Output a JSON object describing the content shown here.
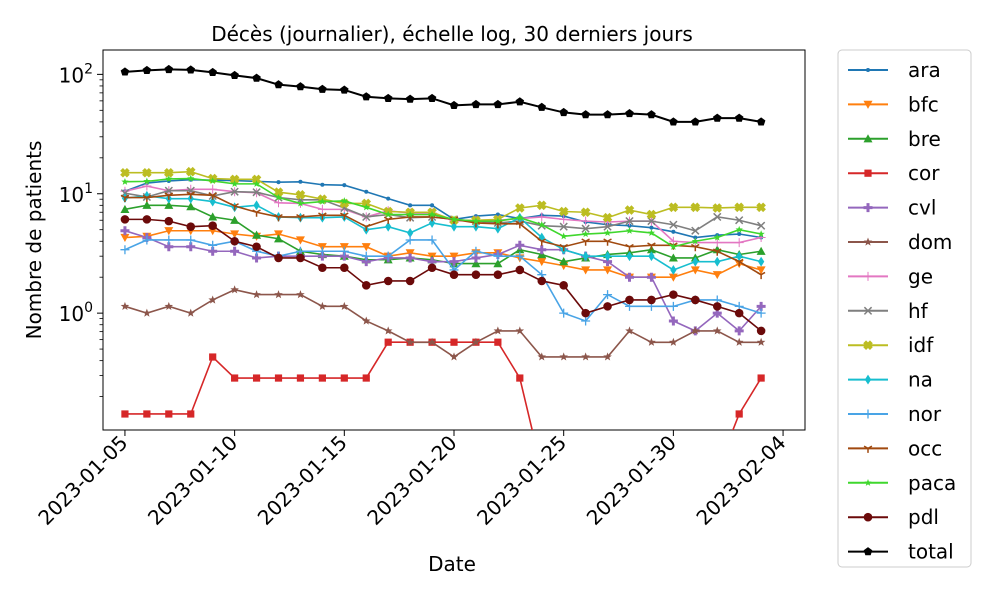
{
  "chart_data": {
    "type": "line",
    "title": "Décès (journalier), échelle log, 30 derniers jours",
    "xlabel": "Date",
    "ylabel": "Nombre de patients",
    "yscale": "log",
    "ylim": [
      0.105,
      160
    ],
    "xlim": [
      "2023-01-04",
      "2023-02-05"
    ],
    "grid": false,
    "legend_placement": "outside-right",
    "x": [
      "2023-01-05",
      "2023-01-06",
      "2023-01-07",
      "2023-01-08",
      "2023-01-09",
      "2023-01-10",
      "2023-01-11",
      "2023-01-12",
      "2023-01-13",
      "2023-01-14",
      "2023-01-15",
      "2023-01-16",
      "2023-01-17",
      "2023-01-18",
      "2023-01-19",
      "2023-01-20",
      "2023-01-21",
      "2023-01-22",
      "2023-01-23",
      "2023-01-24",
      "2023-01-25",
      "2023-01-26",
      "2023-01-27",
      "2023-01-28",
      "2023-01-29",
      "2023-01-30",
      "2023-01-31",
      "2023-02-01",
      "2023-02-02",
      "2023-02-03"
    ],
    "x_ticks": [
      "2023-01-05",
      "2023-01-10",
      "2023-01-15",
      "2023-01-20",
      "2023-01-25",
      "2023-01-30",
      "2023-02-04"
    ],
    "y_ticks": [
      {
        "value": 1,
        "label": "10^0"
      },
      {
        "value": 10,
        "label": "10^1"
      },
      {
        "value": 100,
        "label": "10^2"
      }
    ],
    "series": [
      {
        "name": "ara",
        "color": "#1f77b4",
        "marker": "point",
        "values": [
          10.5,
          12.3,
          12.8,
          13.1,
          13.0,
          12.9,
          12.7,
          12.5,
          12.6,
          11.9,
          11.8,
          10.4,
          9.1,
          8.0,
          8.0,
          6.1,
          6.5,
          6.7,
          6.2,
          6.6,
          6.5,
          5.8,
          5.5,
          5.4,
          5.2,
          4.8,
          4.3,
          4.5,
          4.6,
          4.3
        ]
      },
      {
        "name": "bfc",
        "color": "#ff7f0e",
        "marker": "triangle-down",
        "values": [
          4.3,
          4.4,
          4.9,
          4.9,
          4.9,
          4.6,
          4.4,
          4.6,
          4.1,
          3.6,
          3.6,
          3.6,
          3.0,
          3.2,
          3.0,
          3.0,
          3.2,
          3.2,
          2.9,
          2.7,
          2.5,
          2.3,
          2.3,
          2.0,
          2.0,
          2.0,
          2.3,
          2.1,
          2.6,
          2.3
        ]
      },
      {
        "name": "bre",
        "color": "#2ca02c",
        "marker": "triangle-up",
        "values": [
          7.4,
          8.0,
          8.0,
          7.8,
          6.4,
          6.0,
          4.5,
          4.2,
          3.3,
          3.1,
          3.0,
          2.8,
          2.8,
          2.9,
          2.8,
          2.6,
          2.6,
          2.6,
          3.4,
          3.1,
          2.7,
          2.9,
          3.1,
          3.2,
          3.4,
          2.9,
          2.9,
          3.4,
          3.1,
          3.3
        ]
      },
      {
        "name": "cor",
        "color": "#d62728",
        "marker": "square",
        "values": [
          0.143,
          0.143,
          0.143,
          0.143,
          0.429,
          0.286,
          0.286,
          0.286,
          0.286,
          0.286,
          0.286,
          0.286,
          0.571,
          0.571,
          0.571,
          0.571,
          0.571,
          0.571,
          0.286,
          null,
          null,
          null,
          null,
          null,
          null,
          null,
          null,
          null,
          0.143,
          0.286
        ]
      },
      {
        "name": "cvl",
        "color": "#9467bd",
        "marker": "plus",
        "values": [
          4.9,
          4.3,
          3.6,
          3.6,
          3.3,
          3.3,
          2.9,
          3.0,
          3.0,
          3.0,
          3.0,
          2.7,
          2.9,
          2.9,
          2.7,
          2.7,
          2.9,
          3.1,
          3.7,
          3.4,
          3.4,
          3.0,
          2.7,
          2.0,
          2.0,
          0.86,
          0.71,
          1.0,
          0.71,
          1.14
        ]
      },
      {
        "name": "dom",
        "color": "#8c564b",
        "marker": "star",
        "values": [
          1.14,
          1.0,
          1.14,
          1.0,
          1.29,
          1.57,
          1.43,
          1.43,
          1.43,
          1.14,
          1.14,
          0.86,
          0.71,
          0.57,
          0.57,
          0.43,
          0.57,
          0.71,
          0.71,
          0.43,
          0.43,
          0.43,
          0.43,
          0.71,
          0.57,
          0.57,
          0.71,
          0.71,
          0.57,
          0.57
        ]
      },
      {
        "name": "ge",
        "color": "#e377c2",
        "marker": "vline",
        "values": [
          10.5,
          11.6,
          10.6,
          10.9,
          10.9,
          10.4,
          10.2,
          8.4,
          8.3,
          7.4,
          7.4,
          6.4,
          7.2,
          6.9,
          6.9,
          5.9,
          6.0,
          6.0,
          6.2,
          6.4,
          6.1,
          5.9,
          5.8,
          5.9,
          5.9,
          4.0,
          3.9,
          3.9,
          3.9,
          4.3
        ]
      },
      {
        "name": "hf",
        "color": "#7f7f7f",
        "marker": "x",
        "values": [
          10.1,
          9.4,
          10.6,
          10.6,
          9.6,
          10.4,
          10.3,
          9.3,
          8.9,
          8.9,
          7.6,
          6.4,
          6.7,
          6.3,
          6.4,
          6.1,
          5.9,
          5.7,
          5.9,
          5.4,
          5.3,
          5.1,
          5.3,
          5.9,
          5.9,
          5.5,
          4.9,
          6.4,
          6.0,
          5.4
        ]
      },
      {
        "name": "idf",
        "color": "#bcbd22",
        "marker": "filled-x",
        "values": [
          15.0,
          15.0,
          15.0,
          15.3,
          13.4,
          13.2,
          13.2,
          10.3,
          9.8,
          9.0,
          8.3,
          8.3,
          7.1,
          7.0,
          7.0,
          6.0,
          6.0,
          6.1,
          7.6,
          8.0,
          7.1,
          7.0,
          6.3,
          7.3,
          6.7,
          7.7,
          7.7,
          7.6,
          7.7,
          7.7
        ]
      },
      {
        "name": "na",
        "color": "#17becf",
        "marker": "diamond",
        "values": [
          9.2,
          9.6,
          9.1,
          9.1,
          8.6,
          7.7,
          8.0,
          6.4,
          6.3,
          6.3,
          6.4,
          5.0,
          5.3,
          4.7,
          5.7,
          5.3,
          5.3,
          5.1,
          6.3,
          4.3,
          3.4,
          3.0,
          3.0,
          3.0,
          3.0,
          2.3,
          2.7,
          2.7,
          3.0,
          2.7
        ]
      },
      {
        "name": "nor",
        "color": "#49a4e6",
        "marker": "thin-plus",
        "values": [
          3.4,
          4.1,
          4.1,
          4.1,
          3.7,
          4.0,
          3.3,
          3.0,
          3.3,
          3.3,
          3.3,
          3.0,
          3.0,
          4.1,
          4.1,
          2.3,
          3.3,
          3.0,
          3.0,
          2.1,
          1.0,
          0.86,
          1.43,
          1.14,
          1.14,
          1.14,
          1.29,
          1.29,
          1.14,
          1.0
        ]
      },
      {
        "name": "occ",
        "color": "#a0490f",
        "marker": "tri-down",
        "values": [
          9.3,
          9.3,
          9.7,
          9.9,
          9.7,
          7.9,
          7.0,
          6.4,
          6.4,
          6.6,
          6.6,
          5.3,
          6.1,
          6.4,
          6.4,
          6.1,
          5.7,
          5.6,
          5.6,
          4.0,
          3.6,
          4.0,
          4.0,
          3.6,
          3.7,
          3.7,
          3.6,
          3.3,
          2.7,
          2.1
        ]
      },
      {
        "name": "paca",
        "color": "#3fd72d",
        "marker": "small-star",
        "values": [
          12.6,
          12.7,
          13.3,
          13.4,
          12.8,
          12.1,
          12.1,
          9.3,
          8.3,
          8.6,
          8.7,
          7.7,
          6.7,
          6.7,
          6.7,
          6.1,
          5.9,
          5.9,
          6.3,
          5.5,
          4.4,
          4.6,
          4.7,
          4.9,
          4.7,
          3.6,
          4.0,
          4.3,
          5.0,
          4.6
        ]
      },
      {
        "name": "pdl",
        "color": "#6b0a0a",
        "marker": "circle",
        "values": [
          6.1,
          6.1,
          5.9,
          5.3,
          5.4,
          4.0,
          3.6,
          2.9,
          2.9,
          2.4,
          2.4,
          1.71,
          1.86,
          1.86,
          2.4,
          2.1,
          2.1,
          2.1,
          2.3,
          1.86,
          1.71,
          1.0,
          1.14,
          1.29,
          1.29,
          1.43,
          1.29,
          1.14,
          1.0,
          0.71
        ]
      },
      {
        "name": "total",
        "color": "#000000",
        "marker": "pentagon",
        "values": [
          105,
          108,
          110,
          109,
          104,
          98,
          93,
          82,
          79,
          75,
          74,
          65,
          63,
          62,
          63,
          55,
          56,
          56,
          59,
          53,
          48,
          46,
          46,
          47,
          46,
          40,
          40,
          43,
          43,
          40
        ]
      }
    ]
  }
}
